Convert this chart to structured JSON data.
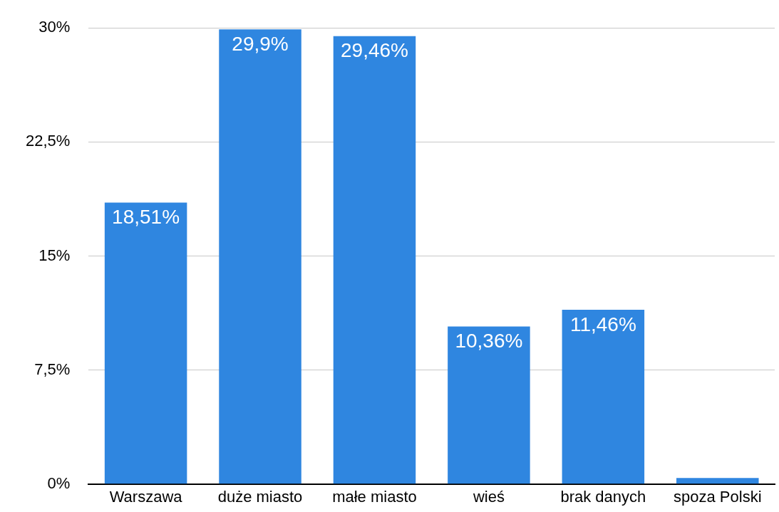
{
  "chart_data": {
    "type": "bar",
    "categories": [
      "Warszawa",
      "duże miasto",
      "małe miasto",
      "wieś",
      "brak danych",
      "spoza Polski"
    ],
    "values": [
      18.51,
      29.9,
      29.46,
      10.36,
      11.46,
      0.4
    ],
    "value_labels": [
      "18,51%",
      "29,9%",
      "29,46%",
      "10,36%",
      "11,46%",
      null
    ],
    "color": "#2f86e0",
    "ylim": [
      0,
      30
    ],
    "yticks": [
      {
        "value": 0,
        "label": "0%"
      },
      {
        "value": 7.5,
        "label": "7,5%"
      },
      {
        "value": 15,
        "label": "15%"
      },
      {
        "value": 22.5,
        "label": "22,5%"
      },
      {
        "value": 30,
        "label": "30%"
      }
    ],
    "grid": "y",
    "legend": false
  }
}
